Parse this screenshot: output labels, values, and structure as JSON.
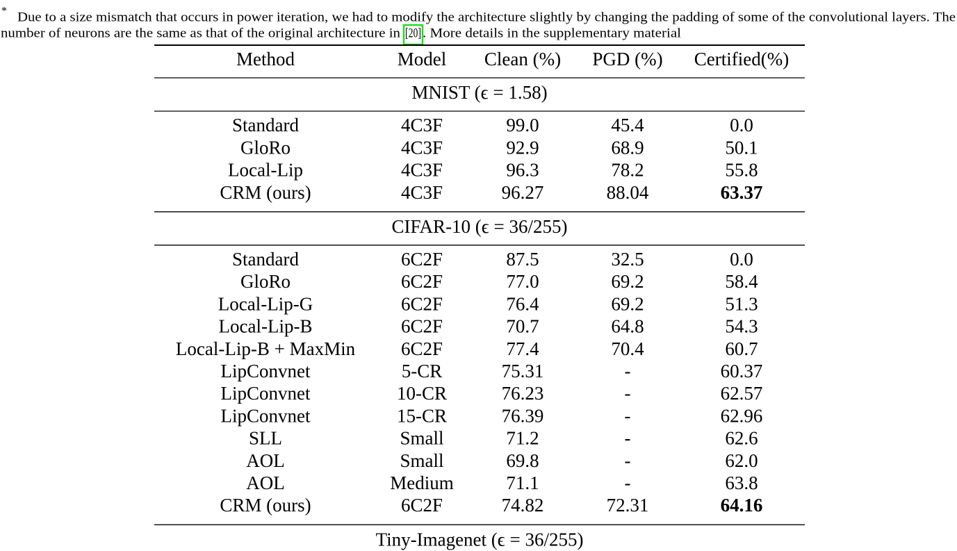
{
  "footnote": {
    "marker": "*",
    "line1": "Due to a size mismatch that occurs in power iteration, we had to modify the architecture slightly by changing the padding of some of the convolutional layers. The",
    "line2_before": "number of neurons are the same as that of the original architecture in",
    "citation": "[20]",
    "line2_after": ". More details in the supplementary material"
  },
  "table": {
    "header": [
      "Method",
      "Model",
      "Clean (%)",
      "PGD (%)",
      "Certified(%)"
    ],
    "sections": [
      {
        "title": "MNIST (ϵ = 1.58)",
        "bold_cell": [
          3,
          4
        ],
        "rows": [
          [
            "Standard",
            "4C3F",
            "99.0",
            "45.4",
            "0.0"
          ],
          [
            "GloRo",
            "4C3F",
            "92.9",
            "68.9",
            "50.1"
          ],
          [
            "Local-Lip",
            "4C3F",
            "96.3",
            "78.2",
            "55.8"
          ],
          [
            "CRM (ours)",
            "4C3F",
            "96.27",
            "88.04",
            "63.37"
          ]
        ]
      },
      {
        "title": "CIFAR-10 (ϵ = 36/255)",
        "bold_cell": [
          11,
          4
        ],
        "rows": [
          [
            "Standard",
            "6C2F",
            "87.5",
            "32.5",
            "0.0"
          ],
          [
            "GloRo",
            "6C2F",
            "77.0",
            "69.2",
            "58.4"
          ],
          [
            "Local-Lip-G",
            "6C2F",
            "76.4",
            "69.2",
            "51.3"
          ],
          [
            "Local-Lip-B",
            "6C2F",
            "70.7",
            "64.8",
            "54.3"
          ],
          [
            "Local-Lip-B + MaxMin",
            "6C2F",
            "77.4",
            "70.4",
            "60.7"
          ],
          [
            "LipConvnet",
            "5-CR",
            "75.31",
            "-",
            "60.37"
          ],
          [
            "LipConvnet",
            "10-CR",
            "76.23",
            "-",
            "62.57"
          ],
          [
            "LipConvnet",
            "15-CR",
            "76.39",
            "-",
            "62.96"
          ],
          [
            "SLL",
            "Small",
            "71.2",
            "-",
            "62.6"
          ],
          [
            "AOL",
            "Small",
            "69.8",
            "-",
            "62.0"
          ],
          [
            "AOL",
            "Medium",
            "71.1",
            "-",
            "63.8"
          ],
          [
            "CRM (ours)",
            "6C2F",
            "74.82",
            "72.31",
            "64.16"
          ]
        ]
      },
      {
        "title": "Tiny-Imagenet (ϵ = 36/255)",
        "bold_cell": null,
        "rows": []
      }
    ]
  }
}
